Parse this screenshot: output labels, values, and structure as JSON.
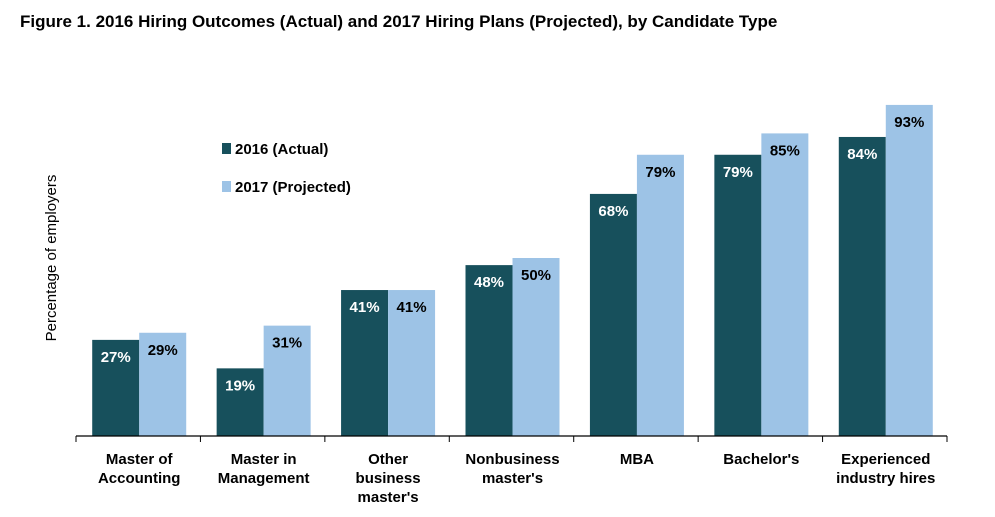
{
  "figure_title": "Figure 1. 2016 Hiring Outcomes (Actual) and 2017 Hiring Plans (Projected), by Candidate Type",
  "chart_data": {
    "type": "bar",
    "title": "Figure 1. 2016 Hiring Outcomes (Actual) and 2017 Hiring Plans (Projected), by Candidate Type",
    "xlabel": "",
    "ylabel": "Percentage of employers",
    "ylim": [
      0,
      100
    ],
    "grid": false,
    "legend_position": "top-left",
    "categories": [
      [
        "Master of",
        "Accounting"
      ],
      [
        "Master in",
        "Management"
      ],
      [
        "Other",
        "business",
        "master's"
      ],
      [
        "Nonbusiness",
        "master's"
      ],
      [
        "MBA"
      ],
      [
        "Bachelor's"
      ],
      [
        "Experienced",
        "industry hires"
      ]
    ],
    "series": [
      {
        "name": "2016 (Actual)",
        "color": "#17505c",
        "label_color": "#ffffff",
        "values": [
          27,
          19,
          41,
          48,
          68,
          79,
          84
        ],
        "labels": [
          "27%",
          "19%",
          "41%",
          "48%",
          "68%",
          "79%",
          "84%"
        ]
      },
      {
        "name": "2017 (Projected)",
        "color": "#9dc3e6",
        "label_color": "#000000",
        "values": [
          29,
          31,
          41,
          50,
          79,
          85,
          93
        ],
        "labels": [
          "29%",
          "31%",
          "41%",
          "50%",
          "79%",
          "85%",
          "93%"
        ]
      }
    ]
  }
}
